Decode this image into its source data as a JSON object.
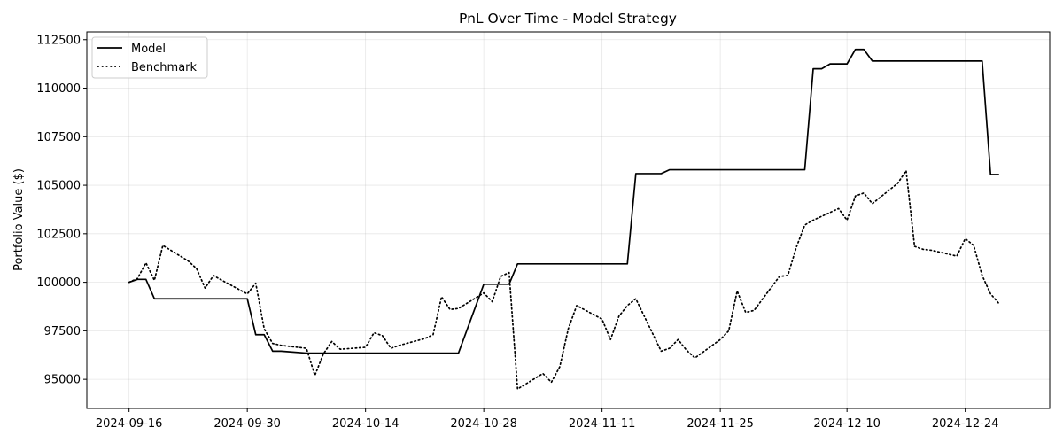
{
  "chart_data": {
    "type": "line",
    "title": "PnL Over Time - Model Strategy",
    "xlabel": "",
    "ylabel": "Portfolio Value ($)",
    "xlim": [
      "2024-09-11",
      "2025-01-03"
    ],
    "ylim": [
      93500,
      112900
    ],
    "x_ticks": [
      "2024-09-16",
      "2024-09-30",
      "2024-10-14",
      "2024-10-28",
      "2024-11-11",
      "2024-11-25",
      "2024-12-10",
      "2024-12-24"
    ],
    "y_ticks": [
      95000,
      97500,
      100000,
      102500,
      105000,
      107500,
      110000,
      112500
    ],
    "y_tick_labels": [
      "95000",
      "97500",
      "100000",
      "102500",
      "105000",
      "107500",
      "110000",
      "112500"
    ],
    "grid": true,
    "legend_position": "upper-left",
    "series": [
      {
        "name": "Model",
        "style": "solid",
        "color": "#000000",
        "points": [
          [
            "2024-09-16",
            100000
          ],
          [
            "2024-09-17",
            100150
          ],
          [
            "2024-09-18",
            100150
          ],
          [
            "2024-09-19",
            99150
          ],
          [
            "2024-09-20",
            99150
          ],
          [
            "2024-09-23",
            99150
          ],
          [
            "2024-09-24",
            99150
          ],
          [
            "2024-09-25",
            99150
          ],
          [
            "2024-09-26",
            99150
          ],
          [
            "2024-09-27",
            99150
          ],
          [
            "2024-09-30",
            99150
          ],
          [
            "2024-10-01",
            97300
          ],
          [
            "2024-10-02",
            97300
          ],
          [
            "2024-10-03",
            96450
          ],
          [
            "2024-10-04",
            96450
          ],
          [
            "2024-10-07",
            96350
          ],
          [
            "2024-10-08",
            96350
          ],
          [
            "2024-10-25",
            96350
          ],
          [
            "2024-10-28",
            99900
          ],
          [
            "2024-10-29",
            99900
          ],
          [
            "2024-10-30",
            99900
          ],
          [
            "2024-10-31",
            99900
          ],
          [
            "2024-11-01",
            100950
          ],
          [
            "2024-11-02",
            100950
          ],
          [
            "2024-11-14",
            100950
          ],
          [
            "2024-11-15",
            105600
          ],
          [
            "2024-11-16",
            105600
          ],
          [
            "2024-11-18",
            105600
          ],
          [
            "2024-11-19",
            105800
          ],
          [
            "2024-11-20",
            105800
          ],
          [
            "2024-12-05",
            105800
          ],
          [
            "2024-12-06",
            111000
          ],
          [
            "2024-12-07",
            111000
          ],
          [
            "2024-12-08",
            111250
          ],
          [
            "2024-12-09",
            111250
          ],
          [
            "2024-12-10",
            111250
          ],
          [
            "2024-12-11",
            112000
          ],
          [
            "2024-12-12",
            112000
          ],
          [
            "2024-12-13",
            111400
          ],
          [
            "2024-12-14",
            111400
          ],
          [
            "2024-12-26",
            111400
          ],
          [
            "2024-12-27",
            105550
          ],
          [
            "2024-12-28",
            105550
          ]
        ]
      },
      {
        "name": "Benchmark",
        "style": "dotted",
        "color": "#000000",
        "points": [
          [
            "2024-09-16",
            100000
          ],
          [
            "2024-09-17",
            100200
          ],
          [
            "2024-09-18",
            101000
          ],
          [
            "2024-09-19",
            100100
          ],
          [
            "2024-09-20",
            101900
          ],
          [
            "2024-09-23",
            101100
          ],
          [
            "2024-09-24",
            100700
          ],
          [
            "2024-09-25",
            99700
          ],
          [
            "2024-09-26",
            100350
          ],
          [
            "2024-09-27",
            100100
          ],
          [
            "2024-09-30",
            99400
          ],
          [
            "2024-10-01",
            99950
          ],
          [
            "2024-10-02",
            97600
          ],
          [
            "2024-10-03",
            96850
          ],
          [
            "2024-10-04",
            96750
          ],
          [
            "2024-10-07",
            96600
          ],
          [
            "2024-10-08",
            95200
          ],
          [
            "2024-10-09",
            96300
          ],
          [
            "2024-10-10",
            96950
          ],
          [
            "2024-10-11",
            96550
          ],
          [
            "2024-10-14",
            96650
          ],
          [
            "2024-10-15",
            97400
          ],
          [
            "2024-10-16",
            97250
          ],
          [
            "2024-10-17",
            96600
          ],
          [
            "2024-10-18",
            96750
          ],
          [
            "2024-10-21",
            97100
          ],
          [
            "2024-10-22",
            97300
          ],
          [
            "2024-10-23",
            99250
          ],
          [
            "2024-10-24",
            98600
          ],
          [
            "2024-10-25",
            98650
          ],
          [
            "2024-10-28",
            99450
          ],
          [
            "2024-10-29",
            99000
          ],
          [
            "2024-10-30",
            100300
          ],
          [
            "2024-10-31",
            100500
          ],
          [
            "2024-11-01",
            94500
          ],
          [
            "2024-11-04",
            95300
          ],
          [
            "2024-11-05",
            94850
          ],
          [
            "2024-11-06",
            95650
          ],
          [
            "2024-11-07",
            97600
          ],
          [
            "2024-11-08",
            98800
          ],
          [
            "2024-11-11",
            98100
          ],
          [
            "2024-11-12",
            97050
          ],
          [
            "2024-11-13",
            98250
          ],
          [
            "2024-11-14",
            98800
          ],
          [
            "2024-11-15",
            99150
          ],
          [
            "2024-11-18",
            96450
          ],
          [
            "2024-11-19",
            96600
          ],
          [
            "2024-11-20",
            97050
          ],
          [
            "2024-11-21",
            96500
          ],
          [
            "2024-11-22",
            96100
          ],
          [
            "2024-11-25",
            97050
          ],
          [
            "2024-11-26",
            97500
          ],
          [
            "2024-11-27",
            99550
          ],
          [
            "2024-11-28",
            98450
          ],
          [
            "2024-11-29",
            98550
          ],
          [
            "2024-12-02",
            100300
          ],
          [
            "2024-12-03",
            100350
          ],
          [
            "2024-12-04",
            101800
          ],
          [
            "2024-12-05",
            102950
          ],
          [
            "2024-12-06",
            103200
          ],
          [
            "2024-12-09",
            103800
          ],
          [
            "2024-12-10",
            103200
          ],
          [
            "2024-12-11",
            104450
          ],
          [
            "2024-12-12",
            104600
          ],
          [
            "2024-12-13",
            104050
          ],
          [
            "2024-12-16",
            105100
          ],
          [
            "2024-12-17",
            105750
          ],
          [
            "2024-12-18",
            101850
          ],
          [
            "2024-12-19",
            101700
          ],
          [
            "2024-12-20",
            101650
          ],
          [
            "2024-12-23",
            101350
          ],
          [
            "2024-12-24",
            102250
          ],
          [
            "2024-12-25",
            101900
          ],
          [
            "2024-12-26",
            100350
          ],
          [
            "2024-12-27",
            99400
          ],
          [
            "2024-12-28",
            98900
          ]
        ]
      }
    ]
  }
}
